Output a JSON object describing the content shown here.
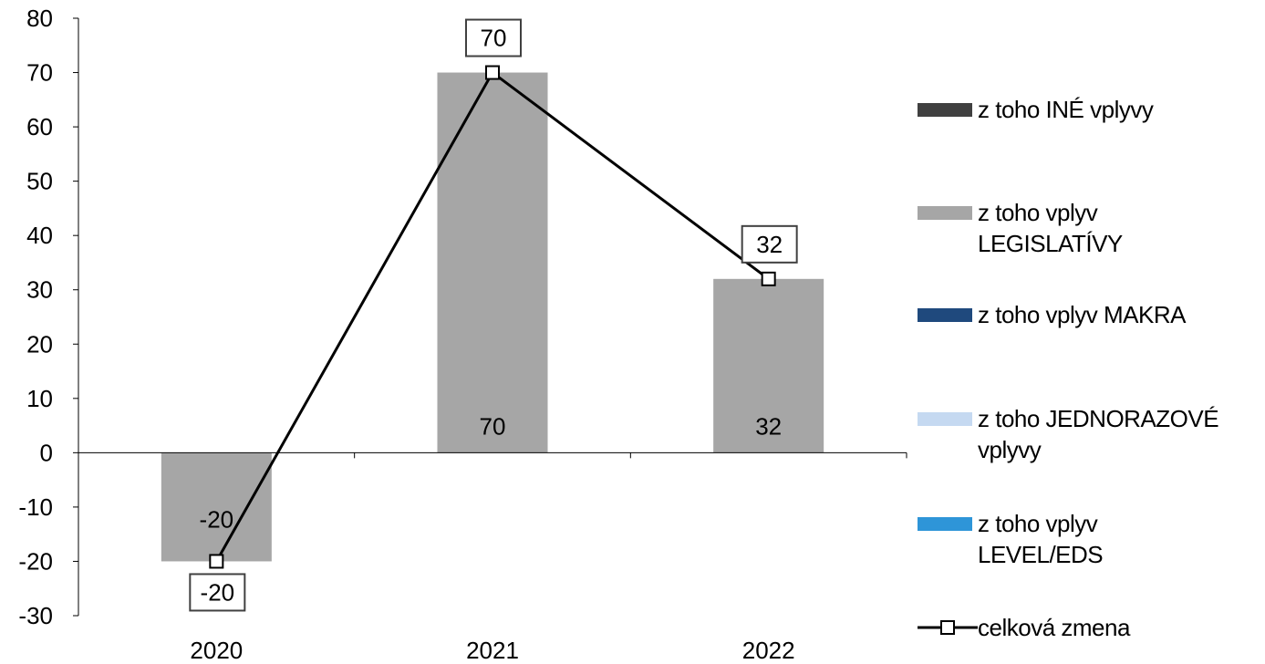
{
  "chart_data": {
    "type": "bar",
    "categories": [
      "2020",
      "2021",
      "2022"
    ],
    "ylim": [
      -30,
      80
    ],
    "yticks": [
      -30,
      -20,
      -10,
      0,
      10,
      20,
      30,
      40,
      50,
      60,
      70,
      80
    ],
    "series": [
      {
        "name": "z toho INÉ vplyvy",
        "kind": "bar",
        "color": "#404040",
        "values": [
          0,
          0,
          0
        ]
      },
      {
        "name": "z toho vplyv LEGISLATÍVY",
        "kind": "bar",
        "color": "#a6a6a6",
        "values": [
          -20,
          70,
          32
        ],
        "labels": [
          "-20",
          "70",
          "32"
        ]
      },
      {
        "name": "z toho vplyv MAKRA",
        "kind": "bar",
        "color": "#1f497d",
        "values": [
          0,
          0,
          0
        ]
      },
      {
        "name": "z toho JEDNORAZOVÉ vplyvy",
        "kind": "bar",
        "color": "#c5d9f1",
        "values": [
          0,
          0,
          0
        ]
      },
      {
        "name": "z toho vplyv LEVEL/EDS",
        "kind": "bar",
        "color": "#2e95d8",
        "values": [
          0,
          0,
          0
        ]
      },
      {
        "name": "celková zmena",
        "kind": "line",
        "color": "#000000",
        "values": [
          -20,
          70,
          32
        ],
        "labels": [
          "-20",
          "70",
          "32"
        ]
      }
    ]
  },
  "legend": [
    {
      "label": "z toho INÉ vplyvy",
      "color": "#404040"
    },
    {
      "label": "z toho vplyv\nLEGISLATÍVY",
      "color": "#a6a6a6"
    },
    {
      "label": "z toho vplyv MAKRA",
      "color": "#1f497d"
    },
    {
      "label": "z toho JEDNORAZOVÉ\nvplyvy",
      "color": "#c5d9f1"
    },
    {
      "label": "z toho vplyv\nLEVEL/EDS",
      "color": "#2e95d8"
    },
    {
      "label": "celková zmena",
      "color": "#000000"
    }
  ]
}
